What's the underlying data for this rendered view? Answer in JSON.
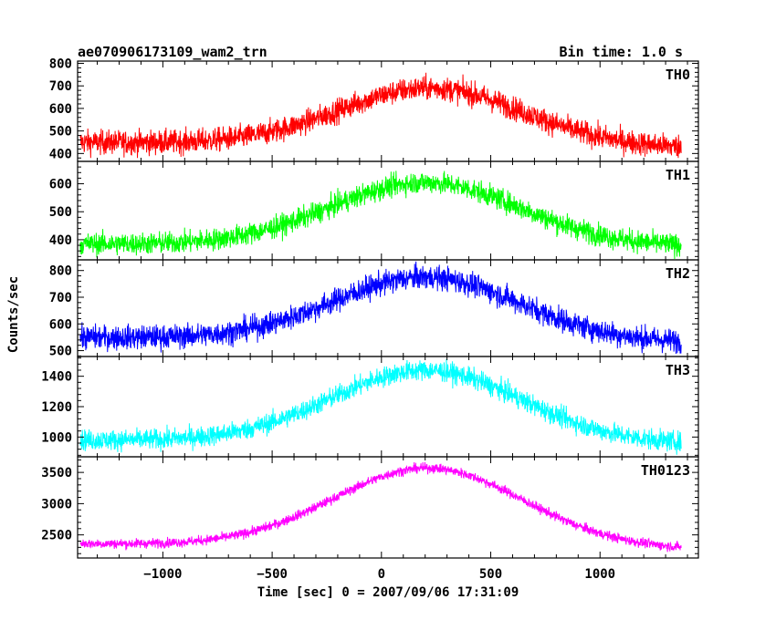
{
  "header": {
    "title": "ae070906173109_wam2_trn",
    "bin_time": "Bin time: 1.0 s"
  },
  "chart_data": {
    "type": "line",
    "xlabel": "Time [sec] 0 = 2007/09/06 17:31:09",
    "ylabel": "Counts/sec",
    "xlim": [
      -1390,
      1450
    ],
    "x_ticks": [
      -1000,
      -500,
      0,
      500,
      1000
    ],
    "x_tick_labels": [
      "−1000",
      "−500",
      "0",
      "500",
      "1000"
    ],
    "x_range_data": [
      -1378,
      1372
    ],
    "grid": false,
    "panels": [
      {
        "name": "TH0",
        "color": "#ff0000",
        "ylim": [
          365,
          810
        ],
        "y_ticks": [
          400,
          500,
          600,
          700,
          800
        ],
        "baseline_start": 450,
        "baseline_end": 425,
        "peak": 690,
        "peak_time": 220,
        "half_width": 560,
        "noise": 38,
        "profile": [
          [
            -1378,
            450
          ],
          [
            -1000,
            465
          ],
          [
            -500,
            520
          ],
          [
            0,
            640
          ],
          [
            220,
            695
          ],
          [
            500,
            640
          ],
          [
            1000,
            500
          ],
          [
            1372,
            425
          ]
        ]
      },
      {
        "name": "TH1",
        "color": "#00ff00",
        "ylim": [
          328,
          680
        ],
        "y_ticks": [
          400,
          500,
          600
        ],
        "baseline_start": 385,
        "baseline_end": 375,
        "peak": 605,
        "peak_time": 200,
        "half_width": 580,
        "noise": 28,
        "profile": [
          [
            -1378,
            385
          ],
          [
            -1000,
            400
          ],
          [
            -500,
            455
          ],
          [
            0,
            565
          ],
          [
            200,
            605
          ],
          [
            500,
            555
          ],
          [
            1000,
            420
          ],
          [
            1372,
            375
          ]
        ]
      },
      {
        "name": "TH2",
        "color": "#0000ff",
        "ylim": [
          478,
          840
        ],
        "y_ticks": [
          500,
          600,
          700,
          800
        ],
        "baseline_start": 550,
        "baseline_end": 530,
        "peak": 775,
        "peak_time": 200,
        "half_width": 570,
        "noise": 32,
        "profile": [
          [
            -1378,
            550
          ],
          [
            -1000,
            560
          ],
          [
            -500,
            615
          ],
          [
            0,
            735
          ],
          [
            200,
            775
          ],
          [
            500,
            730
          ],
          [
            1000,
            590
          ],
          [
            1372,
            530
          ]
        ]
      },
      {
        "name": "TH3",
        "color": "#00ffff",
        "ylim": [
          870,
          1530
        ],
        "y_ticks": [
          1000,
          1200,
          1400
        ],
        "baseline_start": 980,
        "baseline_end": 955,
        "peak": 1440,
        "peak_time": 200,
        "half_width": 580,
        "noise": 48,
        "profile": [
          [
            -1378,
            980
          ],
          [
            -1000,
            1010
          ],
          [
            -500,
            1120
          ],
          [
            0,
            1350
          ],
          [
            200,
            1440
          ],
          [
            500,
            1340
          ],
          [
            1000,
            1080
          ],
          [
            1372,
            955
          ]
        ]
      },
      {
        "name": "TH0123",
        "color": "#ff00ff",
        "ylim": [
          2130,
          3750
        ],
        "y_ticks": [
          2500,
          3000,
          3500
        ],
        "baseline_start": 2360,
        "baseline_end": 2270,
        "peak": 3570,
        "peak_time": 210,
        "half_width": 580,
        "noise": 55,
        "profile": [
          [
            -1378,
            2360
          ],
          [
            -1000,
            2440
          ],
          [
            -500,
            2720
          ],
          [
            0,
            3320
          ],
          [
            210,
            3570
          ],
          [
            500,
            3300
          ],
          [
            1000,
            2620
          ],
          [
            1372,
            2270
          ]
        ]
      }
    ]
  }
}
